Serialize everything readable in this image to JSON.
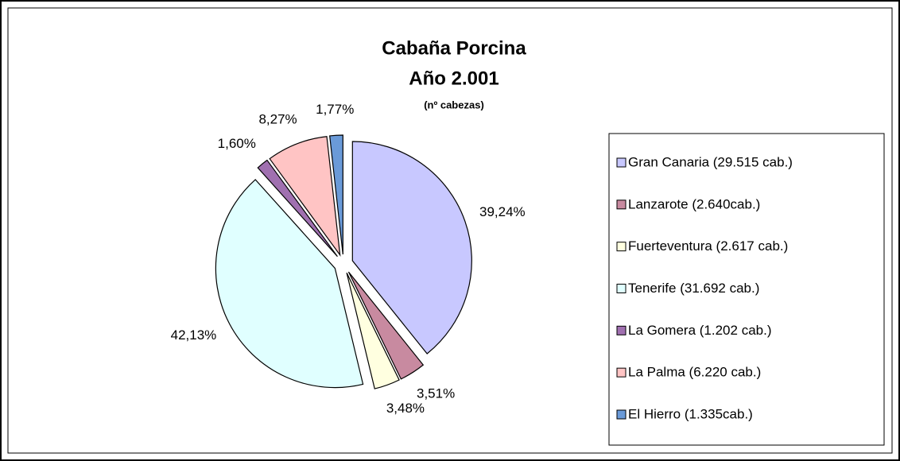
{
  "chart_data": {
    "type": "pie",
    "title": "Cabaña Porcina",
    "subtitle": "Año 2.001",
    "note": "(nº cabezas)",
    "categories": [
      "Gran Canaria (29.515 cab.)",
      "Lanzarote (2.640cab.)",
      "Fuerteventura (2.617 cab.)",
      "Tenerife (31.692 cab.)",
      "La Gomera (1.202 cab.)",
      "La Palma (6.220 cab.)",
      "El Hierro (1.335cab.)"
    ],
    "values": [
      39.24,
      3.51,
      3.48,
      42.13,
      1.6,
      8.27,
      1.77
    ],
    "value_labels": [
      "39,24%",
      "3,51%",
      "3,48%",
      "42,13%",
      "1,60%",
      "8,27%",
      "1,77%"
    ],
    "colors": [
      "#c8c8ff",
      "#c88aa0",
      "#ffffe0",
      "#e0ffff",
      "#a070b0",
      "#ffc4c4",
      "#6a9ad8"
    ],
    "legend": "right"
  }
}
